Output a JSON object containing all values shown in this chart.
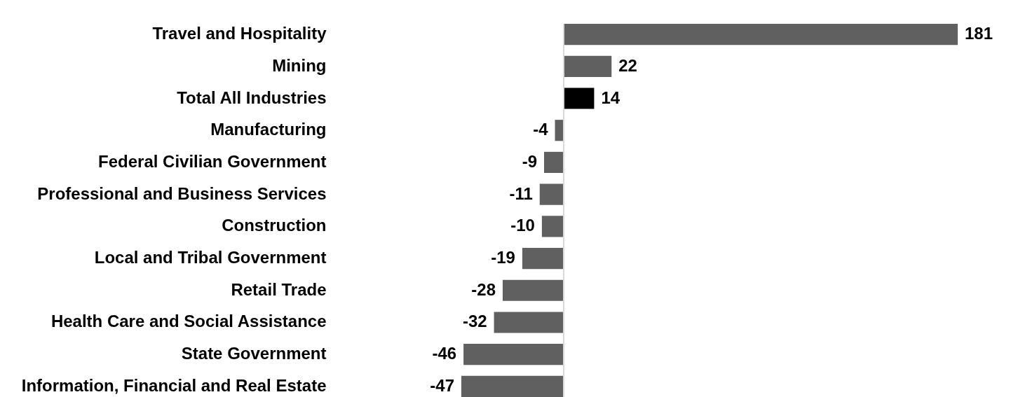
{
  "chart_data": {
    "type": "bar",
    "orientation": "horizontal",
    "categories": [
      "Travel and Hospitality",
      "Mining",
      "Total All Industries",
      "Manufacturing",
      "Federal Civilian Government",
      "Professional and Business Services",
      "Construction",
      "Local and Tribal Government",
      "Retail Trade",
      "Health Care and Social Assistance",
      "State Government",
      "Information, Financial and Real Estate"
    ],
    "values": [
      181,
      22,
      14,
      -4,
      -9,
      -11,
      -10,
      -19,
      -28,
      -32,
      -46,
      -47
    ],
    "colors": [
      "#606060",
      "#606060",
      "#000000",
      "#606060",
      "#606060",
      "#606060",
      "#606060",
      "#606060",
      "#606060",
      "#606060",
      "#606060",
      "#606060"
    ],
    "data_labels": true,
    "tick_labels": "y"
  }
}
